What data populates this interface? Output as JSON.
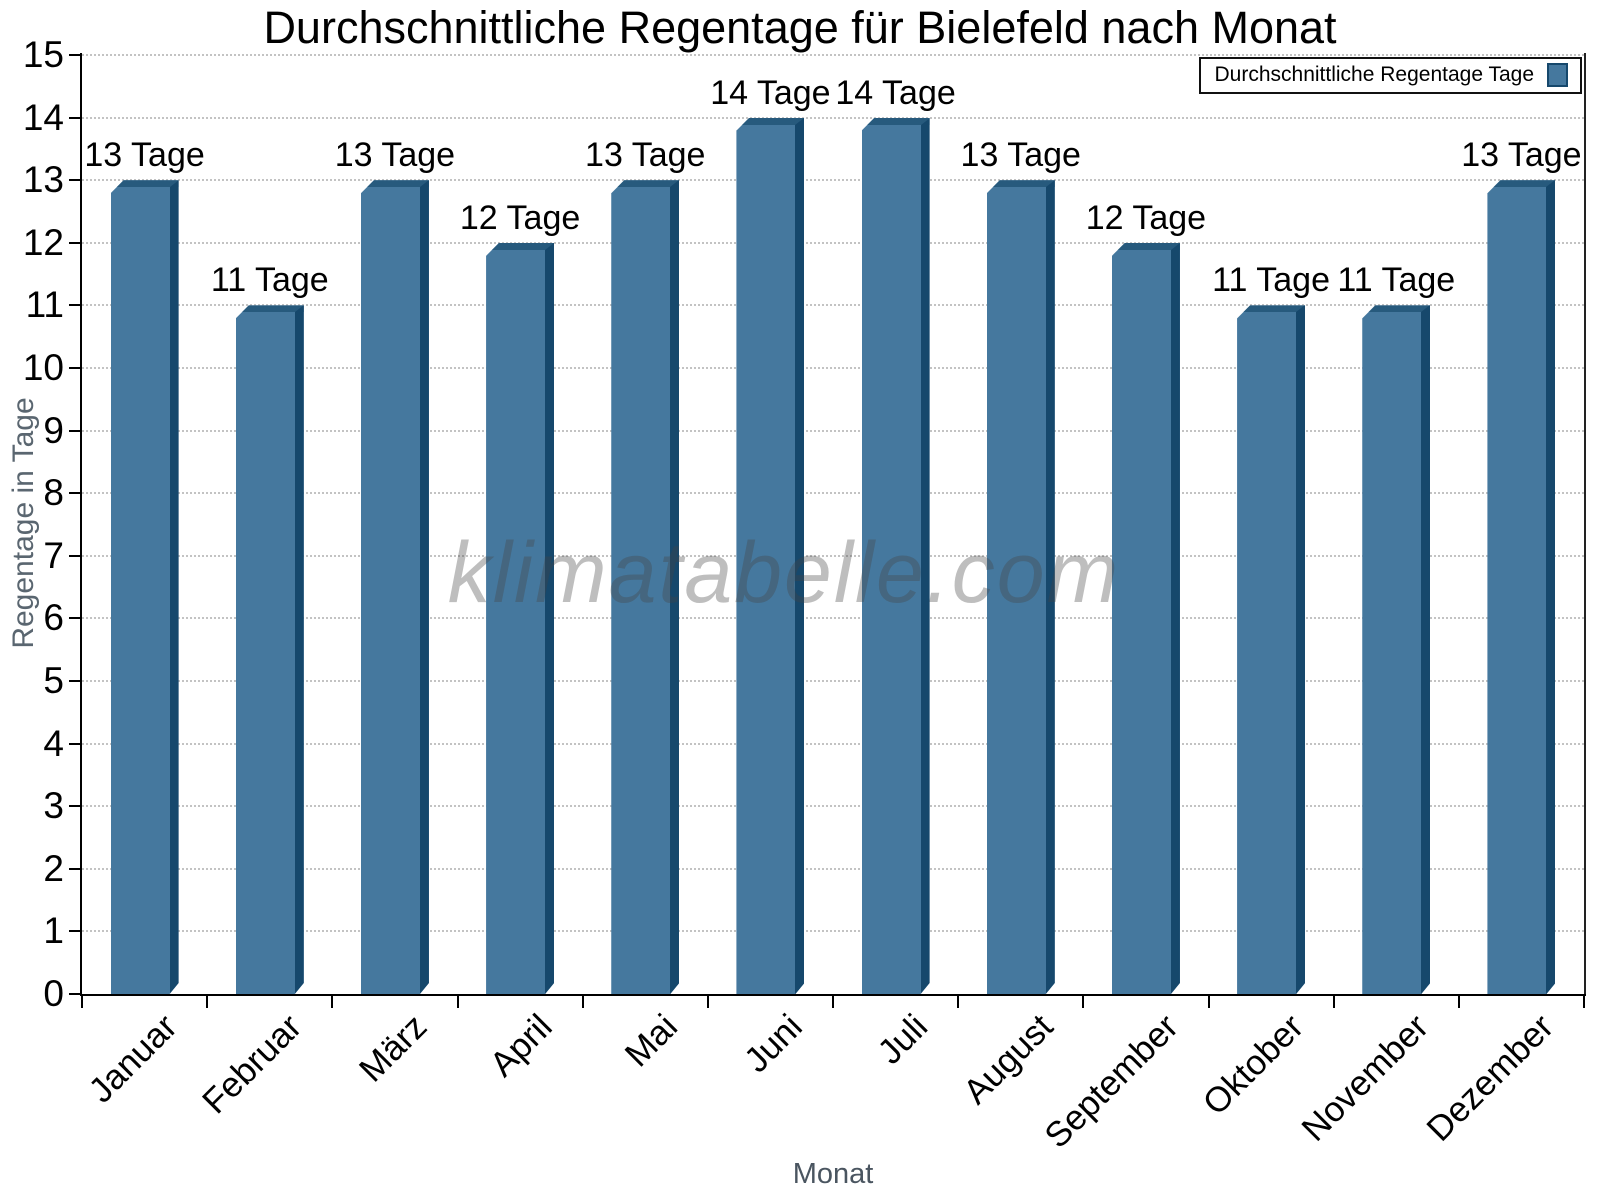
{
  "watermark": "klimatabelle.com",
  "legend": {
    "label": "Durchschnittliche Regentage Tage"
  },
  "colors": {
    "bar_face": "#45789E",
    "bar_side": "#16486C",
    "bar_top": "#275A7D",
    "grid": "#c3c3c3",
    "axis": "#000000",
    "axis_title": "#5a6670",
    "watermark": "rgba(68,68,68,0.35)"
  },
  "chart_data": {
    "type": "bar",
    "title": "Durchschnittliche Regentage für Bielefeld nach Monat",
    "categories": [
      "Januar",
      "Februar",
      "März",
      "April",
      "Mai",
      "Juni",
      "Juli",
      "August",
      "September",
      "Oktober",
      "November",
      "Dezember"
    ],
    "series": [
      {
        "name": "Durchschnittliche Regentage Tage",
        "values": [
          13,
          11,
          13,
          12,
          13,
          14,
          14,
          13,
          12,
          11,
          11,
          13
        ],
        "labels": [
          "13 Tage",
          "11 Tage",
          "13 Tage",
          "12 Tage",
          "13 Tage",
          "14 Tage",
          "14 Tage",
          "13 Tage",
          "12 Tage",
          "11 Tage",
          "11 Tage",
          "13 Tage"
        ]
      }
    ],
    "xlabel": "Monat",
    "ylabel": "Regentage in Tage",
    "ylim": [
      0,
      15
    ],
    "ytick_interval": 1,
    "ytick_labels": [
      "0",
      "1",
      "2",
      "3",
      "4",
      "5",
      "6",
      "7",
      "8",
      "9",
      "10",
      "11",
      "12",
      "13",
      "14",
      "15"
    ],
    "grid": "horizontal-dotted",
    "legend_position": "top-right"
  }
}
